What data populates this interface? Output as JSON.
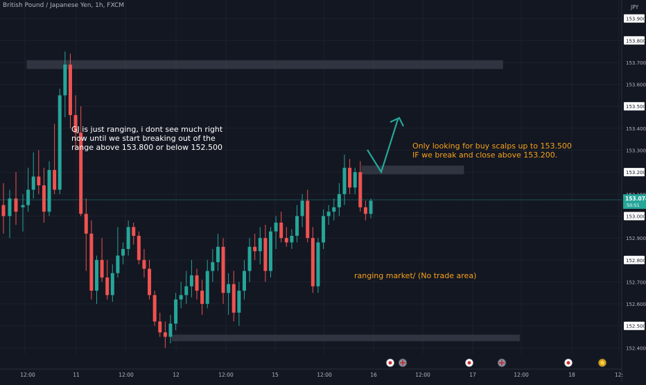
{
  "symbol_title": "British Pound / Japanese Yen, 1h, FXCM",
  "annotations": {
    "ranging_note": "GJ is just ranging, i dont see much right\nnow until we start breaking out of the\nrange above 153.800 or below 152.500",
    "buy_note": "Only looking for buy scalps up to 153.500\nIF we break and close above 153.200.",
    "range_note": "ranging market/ (No trade area)"
  },
  "colors": {
    "background": "#131722",
    "bull": "#26a69a",
    "bear": "#ef5350",
    "zone": "#363a45",
    "arrow": "#26a69a",
    "text_orange": "#f7a21b",
    "axis_text": "#b2b5be",
    "price_label_bg": "#ffffff",
    "current_price_bg": "#26a69a"
  },
  "chart_data": {
    "type": "candlestick",
    "title": "British Pound / Japanese Yen, 1h, FXCM",
    "currency": "JPY",
    "ylim": [
      152.34,
      153.97
    ],
    "y_ticks": [
      "152.400",
      "152.500",
      "152.600",
      "152.700",
      "152.800",
      "152.900",
      "153.000",
      "153.100",
      "153.200",
      "153.300",
      "153.400",
      "153.500",
      "153.600",
      "153.700",
      "153.800",
      "153.900"
    ],
    "highlighted_levels": [
      "152.500",
      "152.800",
      "153.000",
      "153.200",
      "153.500",
      "153.800",
      "153.900"
    ],
    "current_price": "153.074",
    "countdown": "50:51",
    "x_ticks": [
      "12:00",
      "11",
      "12:00",
      "12",
      "12:00",
      "15",
      "12:00",
      "16",
      "12:00",
      "17",
      "12:00",
      "18",
      "12:"
    ],
    "zones": [
      {
        "from_bar": 0,
        "to_bar": 85,
        "low": 153.67,
        "high": 153.71
      },
      {
        "from_bar": 60,
        "to_bar": 78,
        "low": 153.19,
        "high": 153.23
      },
      {
        "from_bar": 26,
        "to_bar": 88,
        "low": 152.43,
        "high": 152.46
      }
    ],
    "projection": [
      {
        "bar": 72,
        "price": 153.33
      },
      {
        "bar": 75,
        "price": 153.19
      },
      {
        "bar": 79,
        "price": 153.46
      }
    ],
    "event_markers": [
      {
        "bar": 77,
        "kind": "red"
      },
      {
        "bar": 80,
        "kind": "flag"
      },
      {
        "bar": 93,
        "kind": "red"
      },
      {
        "bar": 99,
        "kind": "flag"
      },
      {
        "bar": 113,
        "kind": "red"
      },
      {
        "bar": 119,
        "kind": "gold"
      }
    ],
    "candles": [
      {
        "o": 153.04,
        "h": 153.1,
        "l": 152.93,
        "c": 153.05
      },
      {
        "o": 153.05,
        "h": 153.22,
        "l": 153.02,
        "c": 153.12
      },
      {
        "o": 153.12,
        "h": 153.29,
        "l": 153.08,
        "c": 153.18
      },
      {
        "o": 153.18,
        "h": 153.3,
        "l": 153.1,
        "c": 153.14
      },
      {
        "o": 153.14,
        "h": 153.22,
        "l": 152.97,
        "c": 153.02
      },
      {
        "o": 153.02,
        "h": 153.25,
        "l": 153.0,
        "c": 153.21
      },
      {
        "o": 153.21,
        "h": 153.42,
        "l": 153.1,
        "c": 153.12
      },
      {
        "o": 153.12,
        "h": 153.58,
        "l": 153.1,
        "c": 153.55
      },
      {
        "o": 153.55,
        "h": 153.75,
        "l": 153.45,
        "c": 153.69
      },
      {
        "o": 153.69,
        "h": 153.74,
        "l": 153.4,
        "c": 153.46
      },
      {
        "o": 153.46,
        "h": 153.55,
        "l": 153.3,
        "c": 153.38
      },
      {
        "o": 153.38,
        "h": 153.5,
        "l": 153.0,
        "c": 153.01
      },
      {
        "o": 153.01,
        "h": 153.08,
        "l": 152.75,
        "c": 152.92
      },
      {
        "o": 152.92,
        "h": 152.98,
        "l": 152.62,
        "c": 152.66
      },
      {
        "o": 152.66,
        "h": 152.82,
        "l": 152.6,
        "c": 152.8
      },
      {
        "o": 152.8,
        "h": 152.9,
        "l": 152.7,
        "c": 152.72
      },
      {
        "o": 152.72,
        "h": 152.8,
        "l": 152.62,
        "c": 152.64
      },
      {
        "o": 152.64,
        "h": 152.78,
        "l": 152.61,
        "c": 152.74
      },
      {
        "o": 152.74,
        "h": 152.95,
        "l": 152.72,
        "c": 152.82
      },
      {
        "o": 152.82,
        "h": 152.88,
        "l": 152.78,
        "c": 152.85
      },
      {
        "o": 152.85,
        "h": 152.98,
        "l": 152.82,
        "c": 152.95
      },
      {
        "o": 152.95,
        "h": 152.97,
        "l": 152.87,
        "c": 152.91
      },
      {
        "o": 152.91,
        "h": 152.93,
        "l": 152.78,
        "c": 152.8
      },
      {
        "o": 152.8,
        "h": 152.85,
        "l": 152.72,
        "c": 152.76
      },
      {
        "o": 152.76,
        "h": 152.8,
        "l": 152.62,
        "c": 152.64
      },
      {
        "o": 152.64,
        "h": 152.66,
        "l": 152.5,
        "c": 152.52
      },
      {
        "o": 152.52,
        "h": 152.56,
        "l": 152.45,
        "c": 152.47
      },
      {
        "o": 152.47,
        "h": 152.52,
        "l": 152.4,
        "c": 152.45
      },
      {
        "o": 152.45,
        "h": 152.55,
        "l": 152.42,
        "c": 152.51
      },
      {
        "o": 152.51,
        "h": 152.65,
        "l": 152.48,
        "c": 152.62
      },
      {
        "o": 152.62,
        "h": 152.7,
        "l": 152.58,
        "c": 152.64
      },
      {
        "o": 152.64,
        "h": 152.75,
        "l": 152.6,
        "c": 152.68
      },
      {
        "o": 152.68,
        "h": 152.8,
        "l": 152.63,
        "c": 152.73
      },
      {
        "o": 152.73,
        "h": 152.76,
        "l": 152.62,
        "c": 152.66
      },
      {
        "o": 152.66,
        "h": 152.71,
        "l": 152.55,
        "c": 152.6
      },
      {
        "o": 152.6,
        "h": 152.8,
        "l": 152.58,
        "c": 152.75
      },
      {
        "o": 152.75,
        "h": 152.85,
        "l": 152.7,
        "c": 152.79
      },
      {
        "o": 152.79,
        "h": 152.92,
        "l": 152.75,
        "c": 152.86
      },
      {
        "o": 152.86,
        "h": 152.9,
        "l": 152.6,
        "c": 152.65
      },
      {
        "o": 152.65,
        "h": 152.74,
        "l": 152.55,
        "c": 152.69
      },
      {
        "o": 152.69,
        "h": 152.75,
        "l": 152.52,
        "c": 152.56
      },
      {
        "o": 152.56,
        "h": 152.7,
        "l": 152.5,
        "c": 152.66
      },
      {
        "o": 152.66,
        "h": 152.8,
        "l": 152.62,
        "c": 152.75
      },
      {
        "o": 152.75,
        "h": 152.9,
        "l": 152.7,
        "c": 152.86
      },
      {
        "o": 152.86,
        "h": 152.92,
        "l": 152.8,
        "c": 152.84
      },
      {
        "o": 152.84,
        "h": 152.95,
        "l": 152.78,
        "c": 152.9
      },
      {
        "o": 152.9,
        "h": 152.96,
        "l": 152.7,
        "c": 152.75
      },
      {
        "o": 152.75,
        "h": 152.95,
        "l": 152.72,
        "c": 152.93
      },
      {
        "o": 152.93,
        "h": 153.0,
        "l": 152.85,
        "c": 152.97
      },
      {
        "o": 152.97,
        "h": 153.02,
        "l": 152.88,
        "c": 152.9
      },
      {
        "o": 152.9,
        "h": 152.95,
        "l": 152.86,
        "c": 152.88
      },
      {
        "o": 152.88,
        "h": 152.94,
        "l": 152.85,
        "c": 152.91
      },
      {
        "o": 152.91,
        "h": 153.05,
        "l": 152.88,
        "c": 153.0
      },
      {
        "o": 153.0,
        "h": 153.1,
        "l": 152.95,
        "c": 153.07
      },
      {
        "o": 153.07,
        "h": 153.12,
        "l": 152.88,
        "c": 152.9
      },
      {
        "o": 152.9,
        "h": 152.95,
        "l": 152.65,
        "c": 152.68
      },
      {
        "o": 152.68,
        "h": 152.9,
        "l": 152.65,
        "c": 152.88
      },
      {
        "o": 152.88,
        "h": 153.03,
        "l": 152.85,
        "c": 153.0
      },
      {
        "o": 153.0,
        "h": 153.05,
        "l": 152.96,
        "c": 153.02
      },
      {
        "o": 153.02,
        "h": 153.08,
        "l": 152.98,
        "c": 153.04
      },
      {
        "o": 153.04,
        "h": 153.15,
        "l": 153.0,
        "c": 153.1
      },
      {
        "o": 153.1,
        "h": 153.28,
        "l": 153.05,
        "c": 153.22
      },
      {
        "o": 153.22,
        "h": 153.26,
        "l": 153.1,
        "c": 153.13
      },
      {
        "o": 153.13,
        "h": 153.22,
        "l": 153.1,
        "c": 153.2
      },
      {
        "o": 153.2,
        "h": 153.25,
        "l": 153.02,
        "c": 153.04
      },
      {
        "o": 153.04,
        "h": 153.07,
        "l": 152.98,
        "c": 153.01
      },
      {
        "o": 153.01,
        "h": 153.08,
        "l": 152.99,
        "c": 153.07
      }
    ]
  }
}
